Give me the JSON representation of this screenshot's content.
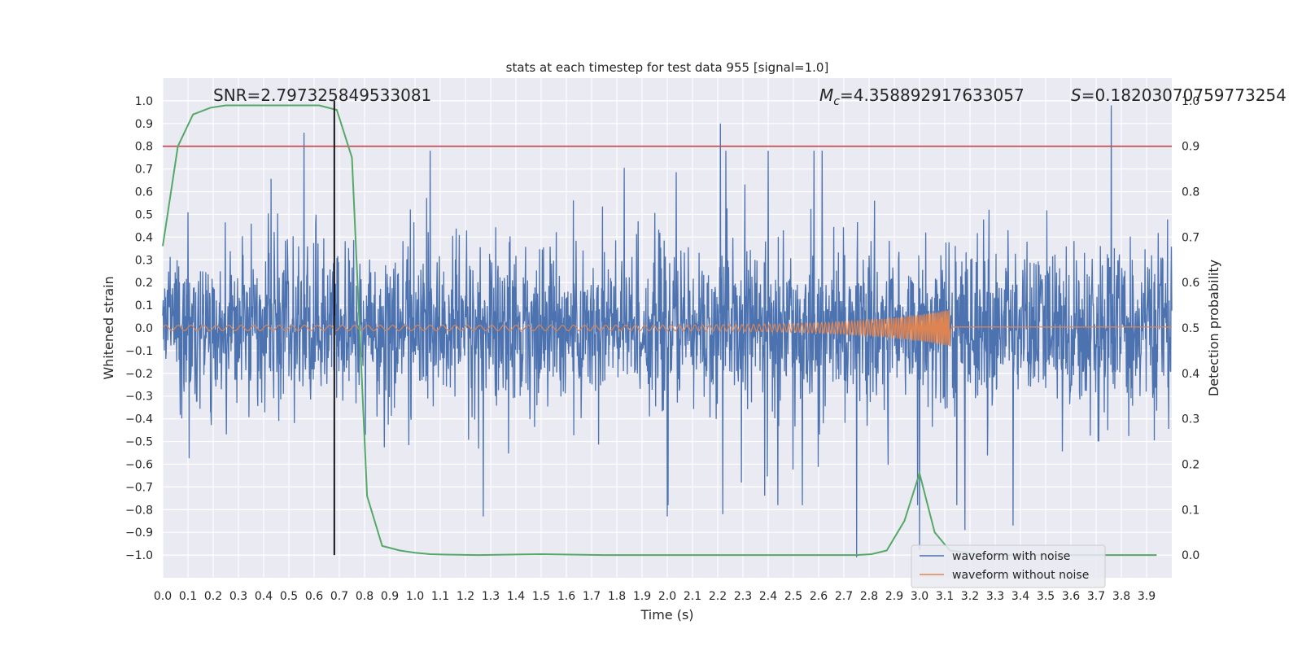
{
  "chart_data": {
    "type": "line",
    "title": "stats at each timestep for test data 955 [signal=1.0]",
    "xlabel": "Time (s)",
    "ylabel": "Whitened strain",
    "y2label": "Detection probability",
    "xlim": [
      0.0,
      4.0
    ],
    "ylim": [
      -1.1,
      1.1
    ],
    "y2lim": [
      -0.05,
      1.05
    ],
    "x_ticks": [
      0.0,
      0.1,
      0.2,
      0.3,
      0.4,
      0.5,
      0.6,
      0.7,
      0.8,
      0.9,
      1.0,
      1.1,
      1.2,
      1.3,
      1.4,
      1.5,
      1.6,
      1.7,
      1.8,
      1.9,
      2.0,
      2.1,
      2.2,
      2.3,
      2.4,
      2.5,
      2.6,
      2.7,
      2.8,
      2.9,
      3.0,
      3.1,
      3.2,
      3.3,
      3.4,
      3.5,
      3.6,
      3.7,
      3.8,
      3.9
    ],
    "x_tick_labels": [
      "0.0",
      "0.1",
      "0.2",
      "0.3",
      "0.4",
      "0.5",
      "0.6",
      "0.7",
      "0.8",
      "0.9",
      "1.0",
      "1.1",
      "1.2",
      "1.3",
      "1.4",
      "1.5",
      "1.6",
      "1.7",
      "1.8",
      "1.9",
      "2.0",
      "2.1",
      "2.2",
      "2.3",
      "2.4",
      "2.5",
      "2.6",
      "2.7",
      "2.8",
      "2.9",
      "3.0",
      "3.1",
      "3.2",
      "3.3",
      "3.4",
      "3.5",
      "3.6",
      "3.7",
      "3.8",
      "3.9"
    ],
    "y_ticks": [
      1.0,
      0.9,
      0.8,
      0.7,
      0.6,
      0.5,
      0.4,
      0.3,
      0.2,
      0.1,
      0.0,
      -0.1,
      -0.2,
      -0.3,
      -0.4,
      -0.5,
      -0.6,
      -0.7,
      -0.8,
      -0.9,
      -1.0
    ],
    "y_tick_labels": [
      "1.0",
      "0.9",
      "0.8",
      "0.7",
      "0.6",
      "0.5",
      "0.4",
      "0.3",
      "0.2",
      "0.1",
      "0.0",
      "−0.1",
      "−0.2",
      "−0.3",
      "−0.4",
      "−0.5",
      "−0.6",
      "−0.7",
      "−0.8",
      "−0.9",
      "−1.0"
    ],
    "y2_ticks": [
      1.0,
      0.9,
      0.8,
      0.7,
      0.6,
      0.5,
      0.4,
      0.3,
      0.2,
      0.1,
      0.0
    ],
    "y2_tick_labels": [
      "1.0",
      "0.9",
      "0.8",
      "0.7",
      "0.6",
      "0.5",
      "0.4",
      "0.3",
      "0.2",
      "0.1",
      "0.0"
    ],
    "grid": true,
    "legend_position": "lower-right",
    "annotations": {
      "snr": "SNR=2.797325849533081",
      "mc_symbol": "M",
      "mc_subscript": "c",
      "mc_value": "=4.358892917633057",
      "s_symbol": "S",
      "s_value": "=0.18203070759773254"
    },
    "threshold_line": {
      "axis": "y2",
      "value": 0.9,
      "color": "#c44e52"
    },
    "vertical_line": {
      "x": 0.68,
      "y_range": [
        -1.0,
        1.0
      ],
      "color": "#000000"
    },
    "series": [
      {
        "name": "waveform with noise",
        "axis": "y",
        "color": "#4c72b0",
        "description_points": {
          "t_start": 0.0,
          "t_end": 4.0,
          "typical_amplitude": 0.35,
          "peaks": [
            [
              0.56,
              0.86
            ],
            [
              2.21,
              0.9
            ],
            [
              3.76,
              0.98
            ],
            [
              3.18,
              0.85
            ],
            [
              2.75,
              -1.01
            ],
            [
              3.0,
              -0.98
            ],
            [
              1.27,
              -0.83
            ],
            [
              2.0,
              -0.83
            ],
            [
              2.22,
              -0.82
            ],
            [
              3.18,
              -0.89
            ],
            [
              3.37,
              -0.87
            ]
          ]
        }
      },
      {
        "name": "waveform without noise",
        "axis": "y",
        "color": "#dd8452",
        "chirp": {
          "t_start": 0.0,
          "t_merge": 3.12,
          "amp_start": 0.012,
          "amp_merge": 0.08,
          "f_start": 20,
          "f_merge": 160
        }
      },
      {
        "name": "",
        "axis": "y2",
        "color": "#55a868",
        "x": [
          0.0,
          0.06,
          0.12,
          0.19,
          0.25,
          0.31,
          0.37,
          0.44,
          0.5,
          0.56,
          0.62,
          0.69,
          0.75,
          0.81,
          0.87,
          0.94,
          1.0,
          1.06,
          1.12,
          1.25,
          1.5,
          1.75,
          2.0,
          2.25,
          2.5,
          2.75,
          2.81,
          2.87,
          2.94,
          3.0,
          3.06,
          3.12,
          3.25,
          3.5,
          3.75,
          3.94
        ],
        "values": [
          0.68,
          0.9,
          0.97,
          0.985,
          0.99,
          0.99,
          0.99,
          0.99,
          0.99,
          0.99,
          0.99,
          0.98,
          0.875,
          0.13,
          0.02,
          0.01,
          0.005,
          0.002,
          0.001,
          0.0,
          0.002,
          0.0,
          0.0,
          0.0,
          0.0,
          0.0,
          0.002,
          0.01,
          0.075,
          0.18,
          0.05,
          0.01,
          0.0,
          0.0,
          0.0,
          0.0
        ]
      }
    ]
  }
}
